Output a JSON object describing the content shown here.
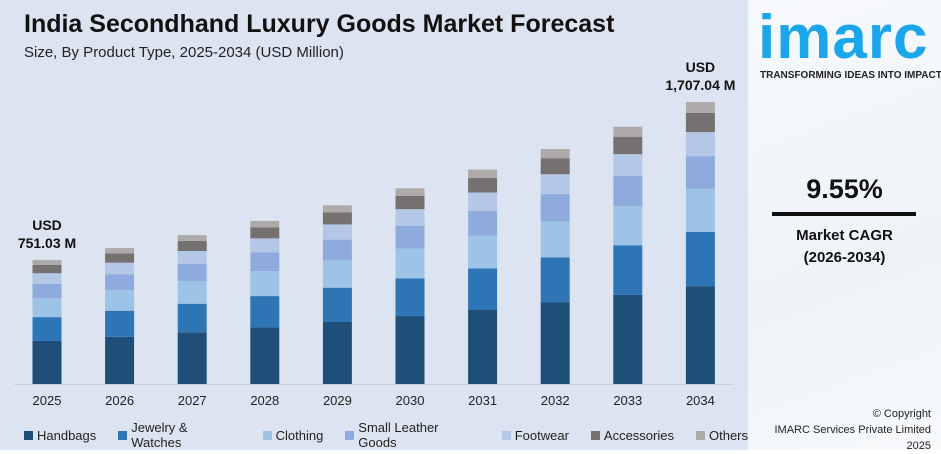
{
  "chart_data": {
    "type": "bar",
    "stacked": true,
    "title": "India Secondhand Luxury Goods Market Forecast",
    "subtitle": "Size, By Product Type, 2025-2034 (USD Million)",
    "categories": [
      "2025",
      "2026",
      "2027",
      "2028",
      "2029",
      "2030",
      "2031",
      "2032",
      "2033",
      "2034"
    ],
    "series": [
      {
        "name": "Handbags",
        "color": "#1f4e79",
        "values": [
          260.6,
          285.5,
          312.8,
          342.6,
          375.4,
          411.2,
          450.5,
          493.5,
          540.6,
          592.3
        ]
      },
      {
        "name": "Jewelry & Watches",
        "color": "#2e75b6",
        "values": [
          144.2,
          158.0,
          173.1,
          189.6,
          207.7,
          227.5,
          249.3,
          273.1,
          299.1,
          327.8
        ]
      },
      {
        "name": "Clothing",
        "color": "#9dc3e6",
        "values": [
          114.9,
          125.9,
          137.9,
          151.1,
          165.5,
          181.3,
          198.6,
          217.6,
          238.4,
          261.2
        ]
      },
      {
        "name": "Small Leather Goods",
        "color": "#8faadc",
        "values": [
          87.1,
          95.4,
          104.6,
          114.5,
          125.5,
          137.5,
          150.6,
          165.0,
          180.7,
          198.0
        ]
      },
      {
        "name": "Footwear",
        "color": "#b4c7e7",
        "values": [
          63.8,
          69.9,
          76.6,
          83.9,
          91.9,
          100.7,
          110.3,
          120.9,
          132.4,
          145.1
        ]
      },
      {
        "name": "Accessories",
        "color": "#767171",
        "values": [
          51.1,
          56.0,
          61.3,
          67.1,
          73.6,
          80.6,
          88.3,
          96.7,
          105.9,
          116.1
        ]
      },
      {
        "name": "Others",
        "color": "#aeaaaa",
        "values": [
          29.3,
          32.1,
          35.2,
          38.5,
          42.2,
          46.2,
          50.6,
          55.5,
          60.8,
          66.6
        ]
      }
    ],
    "annotations": [
      {
        "category": "2025",
        "line1": "USD",
        "line2": "751.03 M"
      },
      {
        "category": "2034",
        "line1": "USD",
        "line2": "1,707.04 M"
      }
    ],
    "legend": "bottom",
    "grid": false
  },
  "brand": {
    "logo": "imarc",
    "tagline": "TRANSFORMING IDEAS INTO IMPACT",
    "color": "#1ba5ea"
  },
  "cagr": {
    "value": "9.55%",
    "label": "Market CAGR",
    "period": "(2026-2034)"
  },
  "copyright": {
    "line1": "© Copyright",
    "line2": "IMARC Services Private Limited 2025"
  }
}
